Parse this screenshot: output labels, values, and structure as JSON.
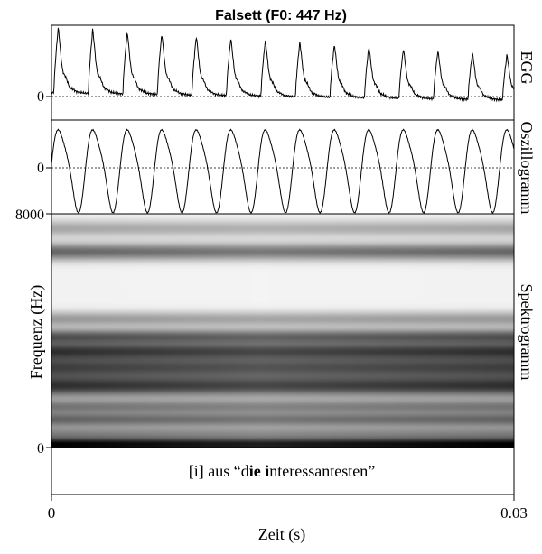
{
  "chart_data": {
    "type": "line",
    "title": "Falsett (F0: 447 Hz)",
    "xlabel": "Zeit (s)",
    "xlim": [
      0,
      0.03
    ],
    "x_ticks": [
      "0",
      "0.03"
    ],
    "caption_parts": [
      {
        "text": "[i] aus “d",
        "bold": false
      },
      {
        "text": "ie i",
        "bold": true
      },
      {
        "text": "nteressantesten”",
        "bold": false
      }
    ],
    "panels": [
      {
        "name": "EGG",
        "ylabel": "EGG",
        "y_ticks": [
          "0"
        ],
        "fundamental_hz": 447,
        "waveform": "egg",
        "peaks_per_window": 13.4
      },
      {
        "name": "Oszillogramm",
        "ylabel": "Oszillogramm",
        "y_ticks": [
          "0"
        ],
        "fundamental_hz": 447,
        "waveform": "sine",
        "peaks_per_window": 13.4
      },
      {
        "name": "Spektrogramm",
        "ylabel": "Spektrogramm",
        "y_axis_label": "Frequenz (Hz)",
        "ylim": [
          0,
          8000
        ],
        "y_ticks": [
          "8000",
          "0"
        ],
        "bands": [
          {
            "freq": 80,
            "darkness": 1.0,
            "width": 260
          },
          {
            "freq": 500,
            "darkness": 0.35,
            "width": 220
          },
          {
            "freq": 950,
            "darkness": 0.55,
            "width": 260
          },
          {
            "freq": 1400,
            "darkness": 0.45,
            "width": 240
          },
          {
            "freq": 2100,
            "darkness": 0.75,
            "width": 380
          },
          {
            "freq": 2750,
            "darkness": 0.65,
            "width": 350
          },
          {
            "freq": 3300,
            "darkness": 0.7,
            "width": 300
          },
          {
            "freq": 3800,
            "darkness": 0.6,
            "width": 260
          },
          {
            "freq": 4400,
            "darkness": 0.35,
            "width": 260
          },
          {
            "freq": 6700,
            "darkness": 0.55,
            "width": 300
          },
          {
            "freq": 7500,
            "darkness": 0.3,
            "width": 280
          }
        ]
      }
    ]
  }
}
